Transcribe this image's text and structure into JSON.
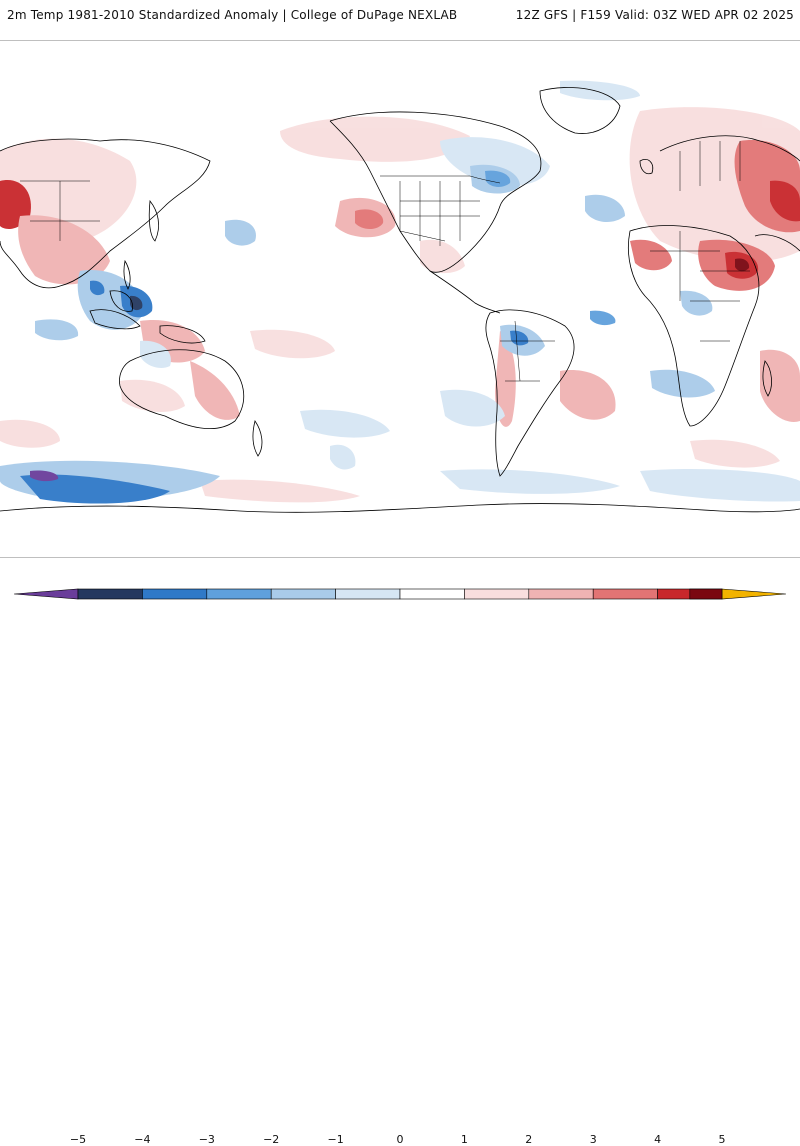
{
  "header": {
    "title_left": "2m Temp 1981-2010 Standardized Anomaly | College of DuPage NEXLAB",
    "title_right": "12Z GFS | F159 Valid: 03Z WED APR 02 2025"
  },
  "map": {
    "field": "2m temperature standardized anomaly",
    "projection": "equirectangular",
    "center_longitude": "180",
    "colors": {
      "cold_extreme": "#6a3d9a",
      "cold_5": "#24385f",
      "cold_4": "#2f79c8",
      "cold_3": "#5fa0dc",
      "cold_2": "#a9cbe9",
      "cold_1": "#d6e6f4",
      "neutral": "#ffffff",
      "warm_1": "#f8dede",
      "warm_2": "#f0b3b3",
      "warm_3": "#e27474",
      "warm_4": "#c8272b",
      "warm_5": "#7a0710",
      "warm_extreme": "#f2b300",
      "coastline": "#000000"
    }
  },
  "colorbar": {
    "ticks": [
      {
        "label": "−5",
        "value": -5
      },
      {
        "label": "−4",
        "value": -4
      },
      {
        "label": "−3",
        "value": -3
      },
      {
        "label": "−2",
        "value": -2
      },
      {
        "label": "−1",
        "value": -1
      },
      {
        "label": "0",
        "value": 0
      },
      {
        "label": "1",
        "value": 1
      },
      {
        "label": "2",
        "value": 2
      },
      {
        "label": "3",
        "value": 3
      },
      {
        "label": "4",
        "value": 4
      },
      {
        "label": "5",
        "value": 5
      }
    ]
  }
}
